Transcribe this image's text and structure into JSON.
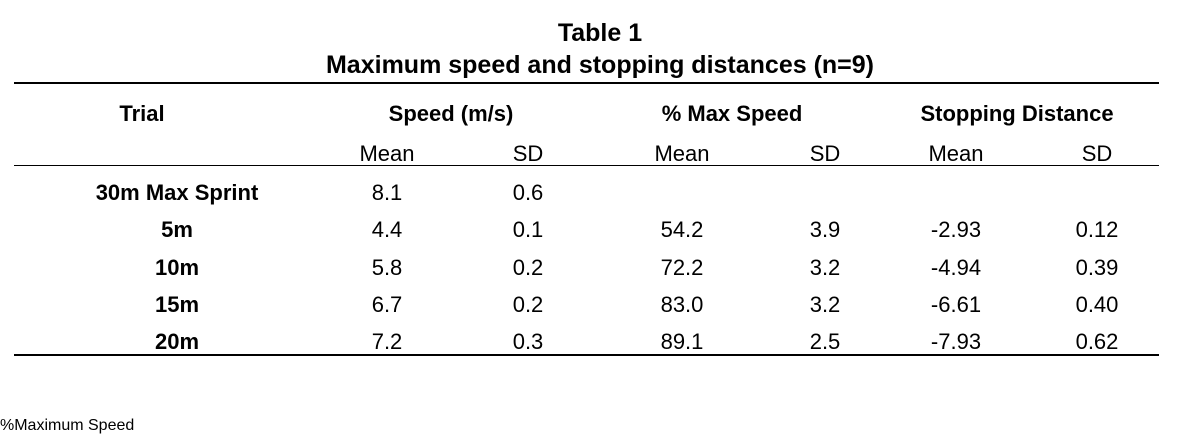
{
  "table": {
    "title": "Table 1",
    "subtitle": "Maximum speed and stopping distances (n=9)",
    "headers": {
      "trial": "Trial",
      "speed": "Speed (m/s)",
      "pct_max_speed": "% Max Speed",
      "stopping_distance": "Stopping Distance"
    },
    "subheaders": [
      "Mean",
      "SD",
      "Mean",
      "SD",
      "Mean",
      "SD"
    ],
    "rows": [
      {
        "trial": "30m Max Sprint",
        "speed_mean": "8.1",
        "speed_sd": "0.6",
        "pct_mean": "",
        "pct_sd": "",
        "stop_mean": "",
        "stop_sd": ""
      },
      {
        "trial": "5m",
        "speed_mean": "4.4",
        "speed_sd": "0.1",
        "pct_mean": "54.2",
        "pct_sd": "3.9",
        "stop_mean": "-2.93",
        "stop_sd": "0.12"
      },
      {
        "trial": "10m",
        "speed_mean": "5.8",
        "speed_sd": "0.2",
        "pct_mean": "72.2",
        "pct_sd": "3.2",
        "stop_mean": "-4.94",
        "stop_sd": "0.39"
      },
      {
        "trial": "15m",
        "speed_mean": "6.7",
        "speed_sd": "0.2",
        "pct_mean": "83.0",
        "pct_sd": "3.2",
        "stop_mean": "-6.61",
        "stop_sd": "0.40"
      },
      {
        "trial": "20m",
        "speed_mean": "7.2",
        "speed_sd": "0.3",
        "pct_mean": "89.1",
        "pct_sd": "2.5",
        "stop_mean": "-7.93",
        "stop_sd": "0.62"
      }
    ]
  },
  "footnote": "%Maximum Speed"
}
